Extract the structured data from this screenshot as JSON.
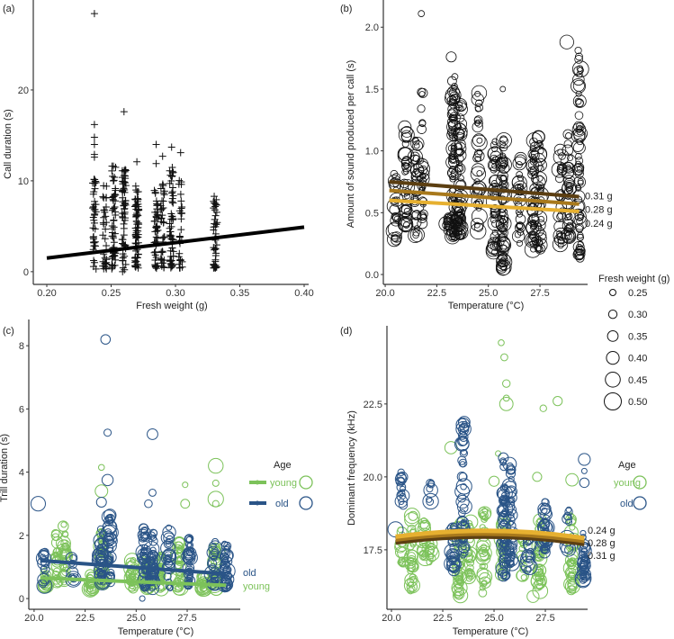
{
  "chart_data": [
    {
      "panel": "(a)",
      "type": "scatter",
      "marker": "plus",
      "xlabel": "Fresh weight (g)",
      "ylabel": "Call duration (s)",
      "xlim": [
        0.1895,
        0.4035
      ],
      "ylim": [
        -1.4,
        29.9
      ],
      "xticks": [
        0.2,
        0.25,
        0.3,
        0.35,
        0.4
      ],
      "xtick_labels": [
        "0.20",
        "0.25",
        "0.30",
        "0.35",
        "0.40"
      ],
      "yticks": [
        0,
        10,
        20
      ],
      "ytick_labels": [
        "0",
        "10",
        "20"
      ],
      "columns": [
        {
          "x": 0.237,
          "ymin": 0.3,
          "ymax": 11,
          "n": 40
        },
        {
          "x": 0.245,
          "ymin": 0.3,
          "ymax": 9.5,
          "n": 35
        },
        {
          "x": 0.252,
          "ymin": 0.3,
          "ymax": 11.7,
          "n": 55
        },
        {
          "x": 0.26,
          "ymin": 0,
          "ymax": 11.8,
          "n": 60
        },
        {
          "x": 0.27,
          "ymin": 0.4,
          "ymax": 9.5,
          "n": 70
        },
        {
          "x": 0.285,
          "ymin": 0.2,
          "ymax": 9,
          "n": 45
        },
        {
          "x": 0.29,
          "ymin": 0.4,
          "ymax": 9.7,
          "n": 35
        },
        {
          "x": 0.297,
          "ymin": 0.4,
          "ymax": 12.2,
          "n": 55
        },
        {
          "x": 0.304,
          "ymin": 0.4,
          "ymax": 10.4,
          "n": 30
        },
        {
          "x": 0.331,
          "ymin": 0.4,
          "ymax": 8.5,
          "n": 45
        }
      ],
      "outliers": [
        [
          0.237,
          28.4
        ],
        [
          0.237,
          16.2
        ],
        [
          0.237,
          14.8
        ],
        [
          0.237,
          14
        ],
        [
          0.237,
          12.9
        ],
        [
          0.237,
          12.6
        ],
        [
          0.26,
          17.6
        ],
        [
          0.27,
          12.1
        ],
        [
          0.285,
          14
        ],
        [
          0.285,
          11.9
        ],
        [
          0.29,
          12.7
        ],
        [
          0.297,
          13.7
        ],
        [
          0.304,
          13.1
        ]
      ],
      "fit": {
        "x": [
          0.2,
          0.4
        ],
        "y": [
          1.5,
          4.9
        ],
        "color": "#000000"
      }
    },
    {
      "panel": "(b)",
      "type": "scatter",
      "marker": "circle",
      "xlabel": "Temperature (°C)",
      "ylabel": "Amount of sound produced per call (s)",
      "xlim": [
        19.91,
        29.81
      ],
      "ylim": [
        -0.08,
        2.22
      ],
      "xticks": [
        20,
        22.5,
        25,
        27.5
      ],
      "xtick_labels": [
        "20.0",
        "22.5",
        "25.0",
        "27.5"
      ],
      "yticks": [
        0,
        0.5,
        1,
        1.5,
        2
      ],
      "ytick_labels": [
        "0.0",
        "0.5",
        "1.0",
        "1.5",
        "2.0"
      ],
      "columns": [
        {
          "x": 20.5,
          "ymin": 0.26,
          "ymax": 0.85,
          "n": 25
        },
        {
          "x": 21.0,
          "ymin": 0.4,
          "ymax": 1.25,
          "n": 35
        },
        {
          "x": 21.5,
          "ymin": 0.3,
          "ymax": 1.1,
          "n": 30
        },
        {
          "x": 21.8,
          "ymin": 0.4,
          "ymax": 1.5,
          "n": 30
        },
        {
          "x": 23.0,
          "ymin": 0.35,
          "ymax": 0.5,
          "n": 12
        },
        {
          "x": 23.3,
          "ymin": 0.3,
          "ymax": 1.6,
          "n": 90
        },
        {
          "x": 23.6,
          "ymin": 0.3,
          "ymax": 1.4,
          "n": 70
        },
        {
          "x": 24.5,
          "ymin": 0.35,
          "ymax": 1.5,
          "n": 40
        },
        {
          "x": 25.3,
          "ymin": 0.15,
          "ymax": 1.1,
          "n": 45
        },
        {
          "x": 25.7,
          "ymin": 0.05,
          "ymax": 1.1,
          "n": 70
        },
        {
          "x": 26.5,
          "ymin": 0.25,
          "ymax": 0.95,
          "n": 30
        },
        {
          "x": 27.2,
          "ymin": 0.2,
          "ymax": 1.1,
          "n": 50
        },
        {
          "x": 27.5,
          "ymin": 0.2,
          "ymax": 1.15,
          "n": 40
        },
        {
          "x": 28.5,
          "ymin": 0.2,
          "ymax": 1.05,
          "n": 30
        },
        {
          "x": 28.9,
          "ymin": 0.3,
          "ymax": 1.15,
          "n": 40
        },
        {
          "x": 29.4,
          "ymin": 0.13,
          "ymax": 1.82,
          "n": 70
        }
      ],
      "outliers": [
        [
          21.75,
          2.11
        ],
        [
          28.8,
          1.88
        ],
        [
          25.7,
          1.5
        ],
        [
          23.2,
          1.76
        ]
      ],
      "fits": [
        {
          "label": "0.31 g",
          "x": [
            20.2,
            29.4
          ],
          "y": [
            0.75,
            0.63
          ],
          "color": "#5c3f12"
        },
        {
          "label": "0.28 g",
          "x": [
            20.2,
            29.4
          ],
          "y": [
            0.68,
            0.57
          ],
          "color": "#a8791c"
        },
        {
          "label": "0.24 g",
          "x": [
            20.2,
            29.4
          ],
          "y": [
            0.6,
            0.51
          ],
          "color": "#e6b030"
        }
      ],
      "size_legend": {
        "title": "Fresh weight (g)",
        "values": [
          "0.25",
          "0.30",
          "0.35",
          "0.40",
          "0.45",
          "0.50"
        ]
      }
    },
    {
      "panel": "(c)",
      "type": "scatter",
      "marker": "circle",
      "xlabel": "Temperature (°C)",
      "ylabel": "Trill duration (s)",
      "xlim": [
        19.74,
        30.1
      ],
      "ylim": [
        -0.34,
        8.83
      ],
      "xticks": [
        20,
        22.5,
        25,
        27.5
      ],
      "xtick_labels": [
        "20.0",
        "22.5",
        "25.0",
        "27.5"
      ],
      "yticks": [
        0,
        2,
        4,
        6,
        8
      ],
      "ytick_labels": [
        "0",
        "2",
        "4",
        "6",
        "8"
      ],
      "series": [
        {
          "name": "young",
          "color": "#7cc25a",
          "columns": [
            {
              "x": 20.6,
              "ymin": 0.4,
              "ymax": 0.8,
              "n": 20
            },
            {
              "x": 21.1,
              "ymin": 0.5,
              "ymax": 2.3,
              "n": 20
            },
            {
              "x": 21.5,
              "ymin": 0.5,
              "ymax": 2.4,
              "n": 30
            },
            {
              "x": 22.8,
              "ymin": 0.3,
              "ymax": 0.8,
              "n": 20
            },
            {
              "x": 23.3,
              "ymin": 0.4,
              "ymax": 2.1,
              "n": 40
            },
            {
              "x": 24.8,
              "ymin": 0.3,
              "ymax": 1.3,
              "n": 25
            },
            {
              "x": 25.5,
              "ymin": 0.3,
              "ymax": 1.3,
              "n": 30
            },
            {
              "x": 26.2,
              "ymin": 0.3,
              "ymax": 1.4,
              "n": 30
            },
            {
              "x": 27.1,
              "ymin": 0.3,
              "ymax": 1.8,
              "n": 35
            },
            {
              "x": 28.3,
              "ymin": 0.3,
              "ymax": 0.7,
              "n": 20
            },
            {
              "x": 28.9,
              "ymin": 0.3,
              "ymax": 1.6,
              "n": 30
            }
          ],
          "outliers": [
            [
              23.3,
              4.15
            ],
            [
              23.3,
              3.4
            ],
            [
              27.4,
              3.6
            ],
            [
              27.4,
              3.0
            ],
            [
              28.9,
              4.2
            ],
            [
              28.9,
              3.65
            ],
            [
              28.9,
              3.15
            ],
            [
              28.9,
              3.0
            ]
          ],
          "fit": {
            "x": [
              20.3,
              29.4
            ],
            "y": [
              0.65,
              0.42
            ]
          }
        },
        {
          "name": "old",
          "color": "#2a5487",
          "columns": [
            {
              "x": 20.5,
              "ymin": 0.4,
              "ymax": 1.5,
              "n": 15
            },
            {
              "x": 21.9,
              "ymin": 0.6,
              "ymax": 1.4,
              "n": 10
            },
            {
              "x": 23.3,
              "ymin": 0.5,
              "ymax": 2.2,
              "n": 40
            },
            {
              "x": 23.7,
              "ymin": 0.5,
              "ymax": 2.7,
              "n": 40
            },
            {
              "x": 25.4,
              "ymin": 0.3,
              "ymax": 2.3,
              "n": 40
            },
            {
              "x": 25.8,
              "ymin": 0.3,
              "ymax": 2.1,
              "n": 40
            },
            {
              "x": 26.6,
              "ymin": 0.3,
              "ymax": 2.3,
              "n": 25
            },
            {
              "x": 27.6,
              "ymin": 0.4,
              "ymax": 1.9,
              "n": 35
            },
            {
              "x": 28.8,
              "ymin": 0.4,
              "ymax": 1.8,
              "n": 20
            },
            {
              "x": 29.4,
              "ymin": 0.3,
              "ymax": 1.8,
              "n": 40
            }
          ],
          "outliers": [
            [
              20.2,
              3.0
            ],
            [
              23.5,
              8.2
            ],
            [
              23.6,
              5.25
            ],
            [
              25.8,
              5.2
            ],
            [
              23.6,
              3.75
            ],
            [
              25.8,
              3.35
            ],
            [
              25.6,
              3.0
            ],
            [
              23.3,
              3.05
            ],
            [
              25.3,
              0.0
            ]
          ],
          "fit": {
            "x": [
              20.3,
              29.4
            ],
            "y": [
              1.2,
              0.78
            ]
          }
        }
      ],
      "legend": {
        "title": "Age",
        "entries": [
          "young",
          "old"
        ]
      },
      "line_labels": [
        "old",
        "young"
      ]
    },
    {
      "panel": "(d)",
      "type": "scatter",
      "marker": "circle",
      "xlabel": "Temperature (°C)",
      "ylabel": "Dominant frequency (kHz)",
      "xlim": [
        19.78,
        29.56
      ],
      "ylim": [
        15.46,
        25.18
      ],
      "xticks": [
        20,
        22.5,
        25,
        27.5
      ],
      "xtick_labels": [
        "20.0",
        "22.5",
        "25.0",
        "27.5"
      ],
      "yticks": [
        17.5,
        20,
        22.5
      ],
      "ytick_labels": [
        "17.5",
        "20.0",
        "22.5"
      ],
      "series": [
        {
          "name": "young",
          "color": "#7cc25a",
          "columns": [
            {
              "x": 20.5,
              "ymin": 17,
              "ymax": 18.2,
              "n": 15
            },
            {
              "x": 21.0,
              "ymin": 16.1,
              "ymax": 18.7,
              "n": 30
            },
            {
              "x": 21.6,
              "ymin": 17.2,
              "ymax": 18.6,
              "n": 20
            },
            {
              "x": 21.9,
              "ymin": 17,
              "ymax": 18,
              "n": 10
            },
            {
              "x": 23.3,
              "ymin": 15.9,
              "ymax": 18.5,
              "n": 40
            },
            {
              "x": 23.8,
              "ymin": 16.5,
              "ymax": 18.5,
              "n": 25
            },
            {
              "x": 24.5,
              "ymin": 16,
              "ymax": 19,
              "n": 30
            },
            {
              "x": 25.4,
              "ymin": 16.6,
              "ymax": 18.5,
              "n": 25
            },
            {
              "x": 26.4,
              "ymin": 16.5,
              "ymax": 18.2,
              "n": 15
            },
            {
              "x": 27.2,
              "ymin": 16,
              "ymax": 18.6,
              "n": 40
            },
            {
              "x": 28.8,
              "ymin": 16.1,
              "ymax": 18.7,
              "n": 35
            }
          ],
          "outliers": [
            [
              25.35,
              24.6
            ],
            [
              25.5,
              24.1
            ],
            [
              25.6,
              23.2
            ],
            [
              25.6,
              22.7
            ],
            [
              25.6,
              22.5
            ],
            [
              28.1,
              22.6
            ],
            [
              27.4,
              22.35
            ],
            [
              22.9,
              21.0
            ],
            [
              25.2,
              20.8
            ],
            [
              27.1,
              20.0
            ],
            [
              28.8,
              19.9
            ],
            [
              25.0,
              19.85
            ],
            [
              26.9,
              15.9
            ]
          ],
          "fit": {
            "label": "0.24 g",
            "x": [
              20.2,
              24.8,
              29.4
            ],
            "y": [
              17.95,
              18.15,
              17.9
            ],
            "color": "#e6b030"
          }
        },
        {
          "name": "old",
          "color": "#2a5487",
          "columns": [
            {
              "x": 20.5,
              "ymin": 19,
              "ymax": 20.3,
              "n": 15
            },
            {
              "x": 21.9,
              "ymin": 19.1,
              "ymax": 20,
              "n": 8
            },
            {
              "x": 23.0,
              "ymin": 16.8,
              "ymax": 18.9,
              "n": 25
            },
            {
              "x": 23.5,
              "ymin": 17.2,
              "ymax": 22.1,
              "n": 50
            },
            {
              "x": 25.5,
              "ymin": 16.6,
              "ymax": 20.7,
              "n": 60
            },
            {
              "x": 25.8,
              "ymin": 17,
              "ymax": 20.5,
              "n": 40
            },
            {
              "x": 26.7,
              "ymin": 16.8,
              "ymax": 17.9,
              "n": 15
            },
            {
              "x": 27.5,
              "ymin": 17.4,
              "ymax": 19.2,
              "n": 40
            },
            {
              "x": 28.6,
              "ymin": 17.5,
              "ymax": 18.9,
              "n": 10
            },
            {
              "x": 29.4,
              "ymin": 16.4,
              "ymax": 18.1,
              "n": 40
            }
          ],
          "outliers": [
            [
              29.4,
              20.6
            ],
            [
              29.4,
              20.2
            ],
            [
              29.4,
              19.8
            ],
            [
              20.2,
              18.2
            ]
          ],
          "fit": {
            "label": "0.28 g",
            "x": [
              20.2,
              24.8,
              29.4
            ],
            "y": [
              17.85,
              18.05,
              17.8
            ],
            "color": "#a8791c"
          }
        }
      ],
      "fit_extra": {
        "label": "0.31 g",
        "x": [
          20.2,
          24.8,
          29.4
        ],
        "y": [
          17.75,
          17.95,
          17.7
        ],
        "color": "#5c3f12"
      },
      "legend": {
        "title": "Age",
        "entries": [
          "young",
          "old"
        ]
      },
      "line_labels": [
        "0.24 g",
        "0.28 g",
        "0.31 g"
      ]
    }
  ]
}
